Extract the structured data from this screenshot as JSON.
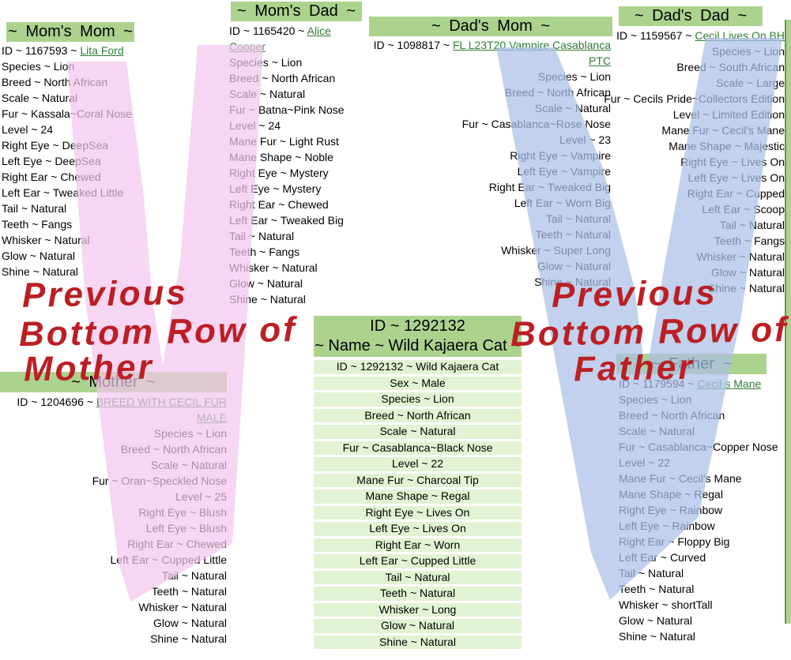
{
  "colors": {
    "header_green": "#abd38e",
    "row_green": "#e2f3d3",
    "link_green": "#2e7d32",
    "annotation_red": "#bb1f24",
    "watermark_pink": "#f3c4ee",
    "watermark_blue": "#aabfe8",
    "text": "#000000"
  },
  "panels": [
    {
      "key": "moms_mom",
      "title": "~ Mom's Mom ~",
      "id_prefix": "ID ~ 1167593 ~ ",
      "id_link": "Lita Ford",
      "traits": [
        "Species ~ Lion",
        "Breed ~ North African",
        "Scale ~ Natural",
        "Fur ~ Kassala~Coral Nose",
        "Level ~ 24",
        "Right Eye ~ DeepSea",
        "Left Eye ~ DeepSea",
        "Right Ear ~ Chewed",
        "Left Ear ~ Tweaked Little",
        "Tail ~ Natural",
        "Teeth ~ Fangs",
        "Whisker ~ Natural",
        "Glow ~ Natural",
        "Shine ~ Natural"
      ]
    },
    {
      "key": "moms_dad",
      "title": "~ Mom's Dad ~",
      "id_prefix": "ID ~ 1165420 ~ ",
      "id_link": "Alice Cooper",
      "traits": [
        "Species ~ Lion",
        "Breed ~ North African",
        "Scale ~ Natural",
        "Fur ~ Batna~Pink Nose",
        "Level ~ 24",
        "Mane Fur ~ Light Rust",
        "Mane Shape ~ Noble",
        "Right Eye ~ Mystery",
        "Left Eye ~ Mystery",
        "Right Ear ~ Chewed",
        "Left Ear ~ Tweaked Big",
        "Tail ~ Natural",
        "Teeth ~ Fangs",
        "Whisker ~ Natural",
        "Glow ~ Natural",
        "Shine ~ Natural"
      ]
    },
    {
      "key": "dads_mom",
      "title": "~ Dad's Mom ~",
      "id_prefix": "ID ~ 1098817 ~ ",
      "id_link": "FL L23T20 Vampire Casablanca PTC",
      "traits": [
        "Species ~ Lion",
        "Breed ~ North African",
        "Scale ~ Natural",
        "Fur ~ Casablanca~Rose Nose",
        "Level ~ 23",
        "Right Eye ~ Vampire",
        "Left Eye ~ Vampire",
        "Right Ear ~ Tweaked Big",
        "Left Ear ~ Worn Big",
        "Tail ~ Natural",
        "Teeth ~ Natural",
        "Whisker ~ Super Long",
        "Glow ~ Natural",
        "Shine ~ Natural"
      ]
    },
    {
      "key": "dads_dad",
      "title": "~ Dad's Dad ~",
      "id_prefix": "ID ~ 1159567 ~ ",
      "id_link": "Cecil Lives On BH",
      "traits": [
        "Species ~ Lion",
        "Breed ~ South African",
        "Scale ~ Large",
        "Fur ~ Cecils Pride~Collectors Edition",
        "Level ~ Limited Edition",
        "Mane Fur ~ Cecil's Mane",
        "Mane Shape ~ Majestic",
        "Right Eye ~ Lives On",
        "Left Eye ~ Lives On",
        "Right Ear ~ Cupped",
        "Left Ear ~ Scoop",
        "Tail ~ Natural",
        "Teeth ~ Fangs",
        "Whisker ~ Natural",
        "Glow ~ Natural",
        "Shine ~ Natural"
      ]
    },
    {
      "key": "mother",
      "title": "~ Mother ~",
      "id_prefix": "ID ~ 1204696 ~ ",
      "id_link": "BREED WITH CECIL FUR MALE",
      "traits": [
        "Species ~ Lion",
        "Breed ~ North African",
        "Scale ~ Natural",
        "Fur ~ Oran~Speckled Nose",
        "Level ~ 25",
        "Right Eye ~ Blush",
        "Left Eye ~ Blush",
        "Right Ear ~ Chewed",
        "Left Ear ~ Cupped Little",
        "Tail ~ Natural",
        "Teeth ~ Natural",
        "Whisker ~ Natural",
        "Glow ~ Natural",
        "Shine ~ Natural"
      ]
    },
    {
      "key": "father",
      "title": "~ Father ~",
      "id_prefix": "ID ~ 1179594 ~ ",
      "id_link": "Cecil s Mane",
      "traits": [
        "Species ~ Lion",
        "Breed ~ North African",
        "Scale ~ Natural",
        "Fur ~ Casablanca~Copper Nose",
        "Level ~ 22",
        "Mane Fur ~ Cecil's Mane",
        "Mane Shape ~ Regal",
        "Right Eye ~ Rainbow",
        "Left Eye ~ Rainbow",
        "Right Ear ~ Floppy Big",
        "Left Ear ~ Curved",
        "Tail ~ Natural",
        "Teeth ~ Natural",
        "Whisker ~ shortTall",
        "Glow ~ Natural",
        "Shine ~ Natural"
      ]
    }
  ],
  "main_cat": {
    "title_line1": "ID ~ 1292132",
    "title_line2": "~ Name ~ Wild Kajaera Cat ~",
    "rows": [
      "ID ~ 1292132 ~ Wild Kajaera Cat",
      "Sex ~ Male",
      "Species ~ Lion",
      "Breed ~ North African",
      "Scale ~ Natural",
      "Fur ~ Casablanca~Black Nose",
      "Level ~ 22",
      "Mane Fur ~ Charcoal Tip",
      "Mane Shape ~ Regal",
      "Right Eye ~ Lives On",
      "Left Eye ~ Lives On",
      "Right Ear ~ Worn",
      "Left Ear ~ Cupped Little",
      "Tail ~ Natural",
      "Teeth ~ Natural",
      "Whisker ~ Long",
      "Glow ~ Natural",
      "Shine ~ Natural"
    ]
  },
  "annotations": {
    "left": {
      "line1": "Previous",
      "line2": "Bottom Row of",
      "line3": "Mother"
    },
    "right": {
      "line1": "Previous",
      "line2": "Bottom Row of",
      "line3": "Father"
    }
  }
}
